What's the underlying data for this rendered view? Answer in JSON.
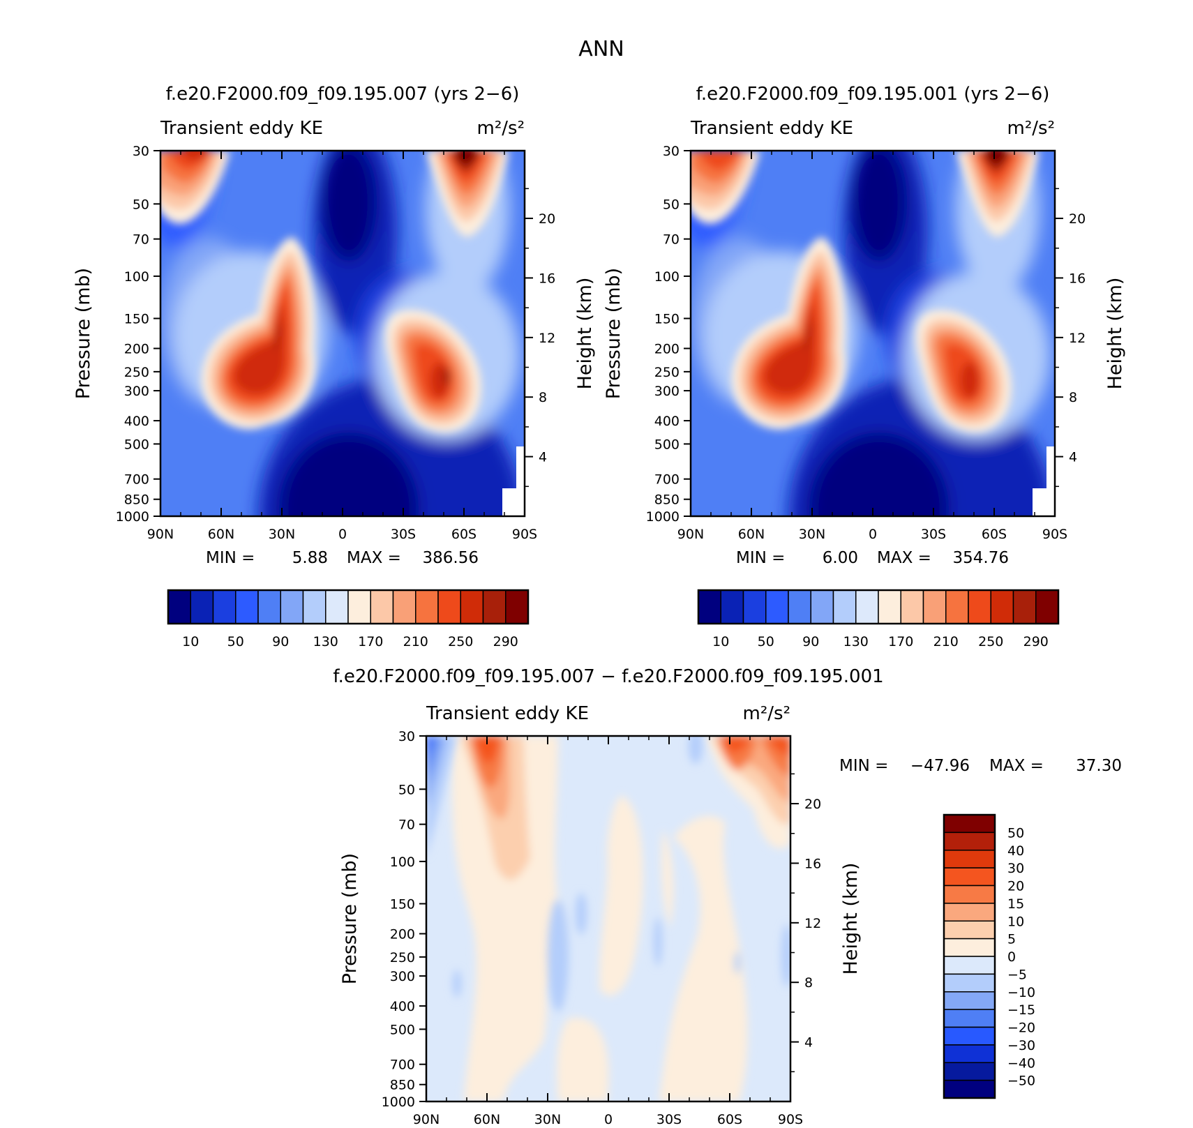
{
  "figure": {
    "title": "ANN"
  },
  "chart_data": [
    {
      "type": "heatmap",
      "id": "panel-007",
      "title": "f.e20.F2000.f09_f09.195.007 (yrs 2−6)",
      "variable": "Transient eddy KE",
      "units": "m²/s²",
      "xlabel": "",
      "ylabel": "Pressure (mb)",
      "y2label": "Height (km)",
      "x_ticks": [
        "90N",
        "60N",
        "30N",
        "0",
        "30S",
        "60S",
        "90S"
      ],
      "y_ticks": [
        30,
        50,
        70,
        100,
        150,
        200,
        250,
        300,
        400,
        500,
        700,
        850,
        1000
      ],
      "y2_ticks": [
        4,
        8,
        12,
        16,
        20
      ],
      "min_label": "MIN =",
      "min_value": "5.88",
      "max_label": "MAX =",
      "max_value": "386.56",
      "colorbar_labels": [
        "10",
        "50",
        "90",
        "130",
        "170",
        "210",
        "250",
        "290"
      ],
      "colors": [
        "#00007f",
        "#0a22b5",
        "#1b3fe0",
        "#2d5bff",
        "#4f7ff5",
        "#82a6f7",
        "#b3cdfb",
        "#dde9fb",
        "#fdeedd",
        "#fcc8a8",
        "#f9a077",
        "#f6733f",
        "#ee4a1b",
        "#d02c08",
        "#a8200a",
        "#7f0000"
      ]
    },
    {
      "type": "heatmap",
      "id": "panel-001",
      "title": "f.e20.F2000.f09_f09.195.001 (yrs 2−6)",
      "variable": "Transient eddy KE",
      "units": "m²/s²",
      "xlabel": "",
      "ylabel": "Pressure (mb)",
      "y2label": "Height (km)",
      "x_ticks": [
        "90N",
        "60N",
        "30N",
        "0",
        "30S",
        "60S",
        "90S"
      ],
      "y_ticks": [
        30,
        50,
        70,
        100,
        150,
        200,
        250,
        300,
        400,
        500,
        700,
        850,
        1000
      ],
      "y2_ticks": [
        4,
        8,
        12,
        16,
        20
      ],
      "min_label": "MIN =",
      "min_value": "6.00",
      "max_label": "MAX =",
      "max_value": "354.76",
      "colorbar_labels": [
        "10",
        "50",
        "90",
        "130",
        "170",
        "210",
        "250",
        "290"
      ],
      "colors": [
        "#00007f",
        "#0a22b5",
        "#1b3fe0",
        "#2d5bff",
        "#4f7ff5",
        "#82a6f7",
        "#b3cdfb",
        "#dde9fb",
        "#fdeedd",
        "#fcc8a8",
        "#f9a077",
        "#f6733f",
        "#ee4a1b",
        "#d02c08",
        "#a8200a",
        "#7f0000"
      ]
    },
    {
      "type": "heatmap",
      "id": "panel-diff",
      "title": "f.e20.F2000.f09_f09.195.007 − f.e20.F2000.f09_f09.195.001",
      "variable": "Transient eddy KE",
      "units": "m²/s²",
      "xlabel": "",
      "ylabel": "Pressure (mb)",
      "y2label": "Height (km)",
      "x_ticks": [
        "90N",
        "60N",
        "30N",
        "0",
        "30S",
        "60S",
        "90S"
      ],
      "y_ticks": [
        30,
        50,
        70,
        100,
        150,
        200,
        250,
        300,
        400,
        500,
        700,
        850,
        1000
      ],
      "y2_ticks": [
        4,
        8,
        12,
        16,
        20
      ],
      "min_label": "MIN =",
      "min_value": "−47.96",
      "max_label": "MAX =",
      "max_value": "37.30",
      "colorbar_labels": [
        "50",
        "40",
        "30",
        "20",
        "15",
        "10",
        "5",
        "0",
        "−5",
        "−10",
        "−15",
        "−20",
        "−30",
        "−40",
        "−50"
      ],
      "colors": [
        "#7f0000",
        "#b3200a",
        "#e03a0c",
        "#f4551f",
        "#f77a45",
        "#faa87e",
        "#fccfae",
        "#fdeedd",
        "#dce9fb",
        "#b3cdfb",
        "#84a8f6",
        "#4f7ff5",
        "#2859ff",
        "#0f31d6",
        "#061a9e",
        "#00007f"
      ]
    }
  ]
}
